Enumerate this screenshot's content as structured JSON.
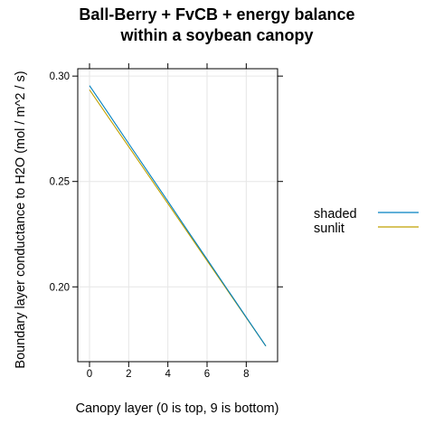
{
  "chart_data": {
    "type": "line",
    "title_lines": [
      "Ball-Berry + FvCB + energy balance",
      "within a soybean canopy"
    ],
    "xlabel": "Canopy layer (0 is top, 9 is bottom)",
    "ylabel": "Boundary layer conductance to H2O (mol / m^2 / s)",
    "xlim": [
      -0.6,
      9.6
    ],
    "ylim": [
      0.1645,
      0.3035
    ],
    "x_ticks": [
      0,
      2,
      4,
      6,
      8
    ],
    "y_ticks": [
      0.2,
      0.25,
      0.3
    ],
    "x_tick_labels": [
      "0",
      "2",
      "4",
      "6",
      "8"
    ],
    "y_tick_labels": [
      "0.20",
      "0.25",
      "0.30"
    ],
    "grid": true,
    "legend_position": "right",
    "x": [
      0,
      1,
      2,
      3,
      4,
      5,
      6,
      7,
      8,
      9
    ],
    "series": [
      {
        "name": "shaded",
        "color": "#0080c0",
        "values": [
          0.2955,
          0.2818,
          0.268,
          0.2543,
          0.2406,
          0.2268,
          0.2131,
          0.1993,
          0.1856,
          0.1719
        ]
      },
      {
        "name": "sunlit",
        "color": "#c0a000",
        "values": [
          0.2935,
          0.28,
          0.2665,
          0.253,
          0.2395,
          0.226,
          0.2124,
          0.1989,
          0.1854,
          0.1719
        ]
      }
    ]
  }
}
